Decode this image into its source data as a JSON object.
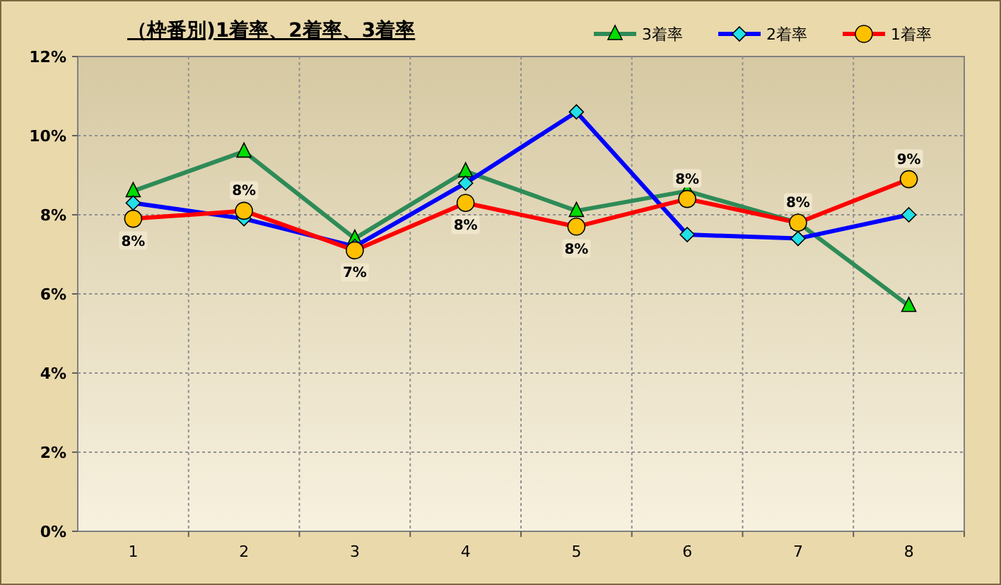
{
  "chart_data": {
    "type": "line",
    "title": "（枠番別)1着率、2着率、3着率",
    "categories": [
      "1",
      "2",
      "3",
      "4",
      "5",
      "6",
      "7",
      "8"
    ],
    "series": [
      {
        "name": "3着率",
        "color": "#2e8b57",
        "marker": "triangle",
        "values": [
          8.6,
          9.6,
          7.4,
          9.1,
          8.1,
          8.6,
          7.8,
          5.7
        ]
      },
      {
        "name": "2着率",
        "color": "#0000ff",
        "marker": "diamond",
        "values": [
          8.3,
          7.9,
          7.2,
          8.8,
          10.6,
          7.5,
          7.4,
          8.0
        ]
      },
      {
        "name": "1着率",
        "color": "#ff0000",
        "marker": "circle",
        "values": [
          7.9,
          8.1,
          7.1,
          8.3,
          7.7,
          8.4,
          7.8,
          8.9
        ],
        "value_labels": [
          "8%",
          "8%",
          "7%",
          "8%",
          "8%",
          "8%",
          "8%",
          "9%"
        ]
      }
    ],
    "ylim": [
      0,
      12
    ],
    "yticks": [
      {
        "value": 0,
        "label": "0%"
      },
      {
        "value": 2,
        "label": "2%"
      },
      {
        "value": 4,
        "label": "4%"
      },
      {
        "value": 6,
        "label": "6%"
      },
      {
        "value": 8,
        "label": "8%"
      },
      {
        "value": 10,
        "label": "10%"
      },
      {
        "value": 12,
        "label": "12%"
      }
    ],
    "grid": true,
    "legend": "top right",
    "line_style": "solid"
  }
}
